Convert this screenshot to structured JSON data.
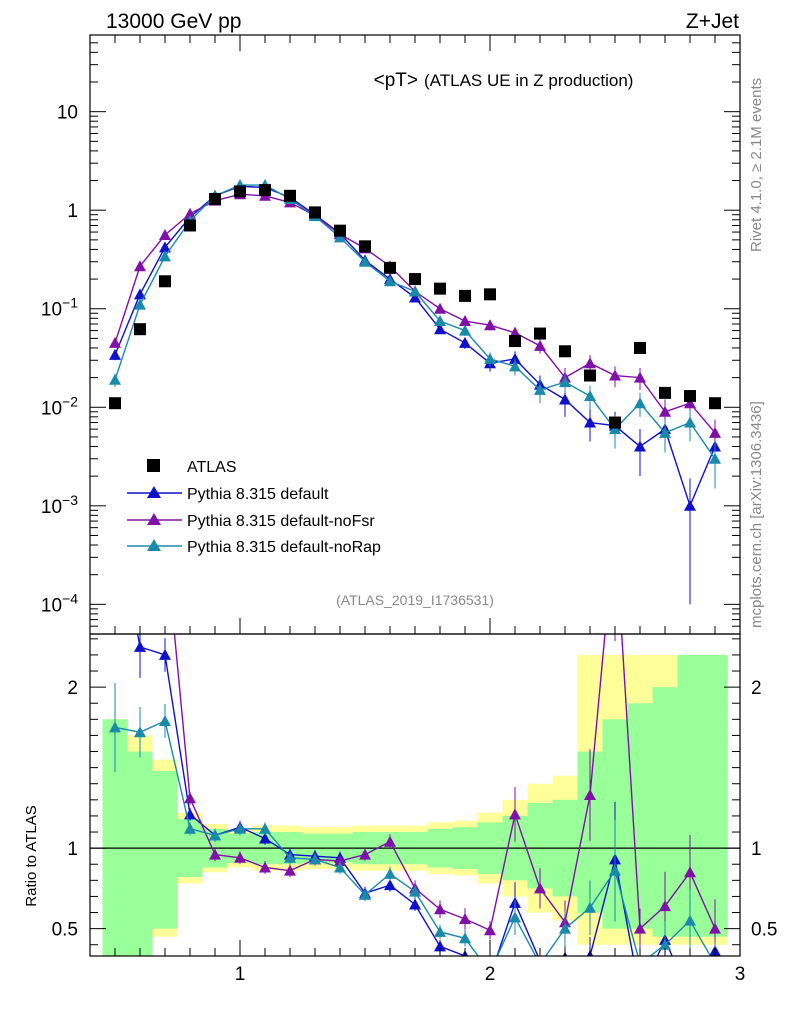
{
  "header": {
    "left": "13000 GeV pp",
    "right": "Z+Jet"
  },
  "side": {
    "top": "Rivet 4.1.0, ≥ 2.1M events",
    "bottom": "mcplots.cern.ch [arXiv:1306.3436]"
  },
  "chart_data": {
    "type": "scatter",
    "title": "<pT> (ATLAS UE in Z production)",
    "title_main": "<pT>",
    "title_sub": "(ATLAS UE in Z production)",
    "analysis_label": "(ATLAS_2019_I1736531)",
    "xlim": [
      0.4,
      3
    ],
    "ylim": [
      5e-05,
      60
    ],
    "yscale": "log",
    "ratio_ylim": [
      0.33,
      2.33
    ],
    "ratio_ylabel": "Ratio to ATLAS",
    "x_ticks": [
      1,
      2,
      3
    ],
    "x_tick_labels": [
      "1",
      "2",
      "3"
    ],
    "y_ticks": [
      10,
      1,
      0.1,
      0.01,
      0.001,
      0.0001
    ],
    "y_tick_labels": [
      {
        "base": "10",
        "exp": ""
      },
      {
        "base": "1",
        "exp": ""
      },
      {
        "base": "10",
        "exp": "−1"
      },
      {
        "base": "10",
        "exp": "−2"
      },
      {
        "base": "10",
        "exp": "−3"
      },
      {
        "base": "10",
        "exp": "−4"
      }
    ],
    "ratio_ticks": [
      2,
      1,
      0.5
    ],
    "ratio_tick_labels": [
      "2",
      "1",
      "0.5"
    ],
    "x": [
      0.5,
      0.6,
      0.7,
      0.8,
      0.9,
      1.0,
      1.1,
      1.2,
      1.3,
      1.4,
      1.5,
      1.6,
      1.7,
      1.8,
      1.9,
      2.0,
      2.1,
      2.2,
      2.3,
      2.4,
      2.5,
      2.6,
      2.7,
      2.8,
      2.9
    ],
    "data": {
      "name": "ATLAS",
      "values": [
        0.011,
        0.062,
        0.19,
        0.7,
        1.3,
        1.55,
        1.6,
        1.4,
        0.95,
        0.62,
        0.43,
        0.26,
        0.2,
        0.16,
        0.135,
        0.14,
        0.047,
        0.056,
        0.037,
        0.021,
        0.007,
        0.04,
        0.014,
        0.013,
        0.011
      ],
      "color": "#000000"
    },
    "series": [
      {
        "name": "Pythia 8.315 default",
        "color": "#1010cc",
        "values": [
          0.034,
          0.14,
          0.42,
          0.85,
          1.4,
          1.75,
          1.7,
          1.35,
          0.9,
          0.58,
          0.31,
          0.2,
          0.13,
          0.062,
          0.045,
          0.028,
          0.031,
          0.017,
          0.012,
          0.007,
          0.0065,
          0.004,
          0.006,
          0.001,
          0.004
        ],
        "errors": [
          0.004,
          0.012,
          0.02,
          0.02,
          0.03,
          0.03,
          0.03,
          0.03,
          0.02,
          0.015,
          0.012,
          0.01,
          0.008,
          0.006,
          0.006,
          0.005,
          0.006,
          0.004,
          0.004,
          0.0025,
          0.0025,
          0.002,
          0.0025,
          0.0009,
          0.002
        ],
        "ratio": [
          3.1,
          2.25,
          2.2,
          1.21,
          1.08,
          1.13,
          1.06,
          0.96,
          0.95,
          0.94,
          0.72,
          0.77,
          0.65,
          0.39,
          0.33,
          0.2,
          0.66,
          0.3,
          0.32,
          0.33,
          0.93,
          0.1,
          0.43,
          0.08,
          0.36
        ]
      },
      {
        "name": "Pythia 8.315 default-noFsr",
        "color": "#8010a8",
        "values": [
          0.045,
          0.27,
          0.56,
          0.92,
          1.25,
          1.45,
          1.4,
          1.2,
          0.88,
          0.57,
          0.41,
          0.27,
          0.15,
          0.1,
          0.075,
          0.068,
          0.057,
          0.042,
          0.02,
          0.028,
          0.021,
          0.02,
          0.009,
          0.011,
          0.0055
        ],
        "errors": [
          0.005,
          0.02,
          0.025,
          0.025,
          0.03,
          0.03,
          0.03,
          0.03,
          0.02,
          0.015,
          0.013,
          0.012,
          0.01,
          0.009,
          0.009,
          0.008,
          0.008,
          0.007,
          0.005,
          0.006,
          0.005,
          0.005,
          0.003,
          0.003,
          0.002
        ],
        "ratio": [
          4.1,
          4.3,
          2.95,
          1.31,
          0.96,
          0.94,
          0.88,
          0.86,
          0.93,
          0.92,
          0.96,
          1.04,
          0.75,
          0.62,
          0.56,
          0.49,
          1.21,
          0.75,
          0.54,
          1.33,
          3.0,
          0.5,
          0.64,
          0.85,
          0.5
        ]
      },
      {
        "name": "Pythia 8.315 default-noRap",
        "color": "#1a8aaa",
        "values": [
          0.019,
          0.11,
          0.34,
          0.78,
          1.4,
          1.8,
          1.8,
          1.3,
          0.87,
          0.53,
          0.3,
          0.19,
          0.15,
          0.075,
          0.06,
          0.031,
          0.026,
          0.015,
          0.018,
          0.013,
          0.006,
          0.011,
          0.0055,
          0.007,
          0.003
        ],
        "errors": [
          0.003,
          0.01,
          0.02,
          0.02,
          0.03,
          0.03,
          0.03,
          0.03,
          0.02,
          0.015,
          0.012,
          0.01,
          0.009,
          0.007,
          0.007,
          0.005,
          0.005,
          0.004,
          0.004,
          0.0035,
          0.0022,
          0.003,
          0.002,
          0.0025,
          0.0015
        ],
        "ratio": [
          1.75,
          1.72,
          1.79,
          1.12,
          1.08,
          1.12,
          1.12,
          0.94,
          0.93,
          0.88,
          0.71,
          0.84,
          0.73,
          0.48,
          0.44,
          0.23,
          0.57,
          0.28,
          0.5,
          0.63,
          0.86,
          0.28,
          0.4,
          0.55,
          0.28
        ]
      }
    ],
    "bands": {
      "band_edges": [
        0.45,
        0.55,
        0.65,
        0.75,
        0.85,
        0.95,
        1.05,
        1.15,
        1.25,
        1.35,
        1.45,
        1.55,
        1.65,
        1.75,
        1.85,
        1.95,
        2.05,
        2.15,
        2.25,
        2.35,
        2.45,
        2.55,
        2.65,
        2.75,
        2.85,
        2.95
      ],
      "stat_lo": [
        0.2,
        0.3,
        0.45,
        0.78,
        0.85,
        0.88,
        0.86,
        0.86,
        0.87,
        0.87,
        0.86,
        0.86,
        0.86,
        0.84,
        0.83,
        0.78,
        0.7,
        0.6,
        0.55,
        0.4,
        0.4,
        0.4,
        0.4,
        0.4,
        0.4
      ],
      "stat_hi": [
        1.8,
        1.7,
        1.55,
        1.22,
        1.15,
        1.12,
        1.14,
        1.14,
        1.13,
        1.13,
        1.14,
        1.14,
        1.14,
        1.16,
        1.17,
        1.22,
        1.3,
        1.4,
        1.45,
        2.2,
        2.2,
        2.2,
        2.2,
        2.2,
        2.2
      ],
      "sys_lo": [
        0.2,
        0.3,
        0.5,
        0.82,
        0.88,
        0.91,
        0.9,
        0.9,
        0.91,
        0.91,
        0.9,
        0.9,
        0.9,
        0.88,
        0.87,
        0.84,
        0.8,
        0.75,
        0.7,
        0.6,
        0.5,
        0.5,
        0.45,
        0.45,
        0.45
      ],
      "sys_hi": [
        1.8,
        1.6,
        1.48,
        1.18,
        1.12,
        1.09,
        1.1,
        1.1,
        1.09,
        1.09,
        1.1,
        1.1,
        1.1,
        1.12,
        1.13,
        1.16,
        1.2,
        1.28,
        1.3,
        1.6,
        1.8,
        1.9,
        2.0,
        2.2,
        2.2
      ]
    },
    "colors": {
      "stat_band": "#ffff99",
      "sys_band": "#99ff99",
      "frame": "#000000",
      "label_grey": "#888888"
    }
  }
}
